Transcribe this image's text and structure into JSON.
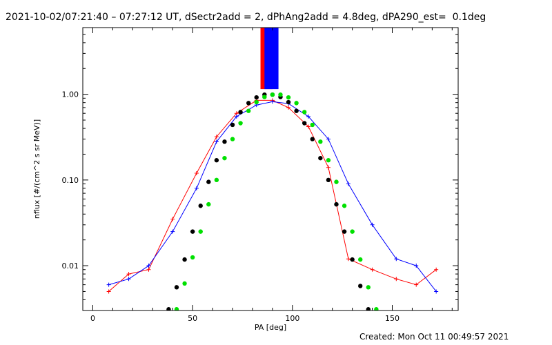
{
  "header": {
    "title": "2021-10-02/07:21:40 – 07:27:12 UT, dSectr2add = 2, dPhAng2add = 4.8deg, dPA290_est=  0.1deg"
  },
  "footer": {
    "created": "Created: Mon Oct 11 00:49:57 2021"
  },
  "chart_data": {
    "type": "line",
    "xlabel": "PA [deg]",
    "ylabel": "nflux [#/(cm^2 s sr MeV)]",
    "xlim": [
      -5,
      183
    ],
    "ylim": [
      0.003,
      6.0
    ],
    "yscale": "log",
    "x_ticks": [
      0,
      50,
      100,
      150
    ],
    "x_tick_labels": [
      "0",
      "50",
      "100",
      "150"
    ],
    "y_ticks": [
      0.01,
      0.1,
      1.0
    ],
    "y_tick_labels": [
      "0.01",
      "0.10",
      "1.00"
    ],
    "colors": {
      "series_a": "#ff0000",
      "series_b": "#0000ff",
      "fit_1": "#000000",
      "fit_2": "#00e000"
    },
    "series": [
      {
        "color": "#ff0000",
        "marker": "plus",
        "x": [
          8,
          18,
          28,
          40,
          52,
          62,
          72,
          82,
          90,
          98,
          108,
          118,
          128,
          140,
          152,
          162,
          172
        ],
        "y": [
          0.005,
          0.008,
          0.009,
          0.035,
          0.12,
          0.32,
          0.6,
          0.85,
          0.85,
          0.7,
          0.42,
          0.14,
          0.012,
          0.009,
          0.007,
          0.006,
          0.009
        ]
      },
      {
        "color": "#0000ff",
        "marker": "plus",
        "x": [
          8,
          18,
          28,
          40,
          52,
          62,
          72,
          82,
          90,
          98,
          108,
          118,
          128,
          140,
          152,
          162,
          172
        ],
        "y": [
          0.006,
          0.007,
          0.01,
          0.025,
          0.08,
          0.28,
          0.55,
          0.75,
          0.82,
          0.78,
          0.55,
          0.3,
          0.09,
          0.03,
          0.012,
          0.01,
          0.005
        ]
      },
      {
        "color": "#000000",
        "marker": "dot",
        "x": [
          38,
          42,
          46,
          50,
          54,
          58,
          62,
          66,
          70,
          74,
          78,
          82,
          86,
          90,
          94,
          98,
          102,
          106,
          110,
          114,
          118,
          122,
          126,
          130,
          134,
          138
        ],
        "y": [
          0.0031,
          0.0056,
          0.0118,
          0.025,
          0.05,
          0.095,
          0.17,
          0.28,
          0.44,
          0.62,
          0.79,
          0.92,
          0.99,
          0.99,
          0.93,
          0.81,
          0.64,
          0.46,
          0.3,
          0.18,
          0.1,
          0.052,
          0.025,
          0.0118,
          0.0058,
          0.0031
        ]
      },
      {
        "color": "#00e000",
        "marker": "dot",
        "x": [
          42,
          46,
          50,
          54,
          58,
          62,
          66,
          70,
          74,
          78,
          82,
          86,
          90,
          94,
          98,
          102,
          106,
          110,
          114,
          118,
          122,
          126,
          130,
          134,
          138,
          142
        ],
        "y": [
          0.0031,
          0.0062,
          0.0125,
          0.025,
          0.052,
          0.1,
          0.18,
          0.3,
          0.46,
          0.64,
          0.81,
          0.93,
          0.99,
          0.99,
          0.92,
          0.79,
          0.62,
          0.44,
          0.28,
          0.17,
          0.095,
          0.05,
          0.025,
          0.0118,
          0.0056,
          0.0031
        ]
      }
    ],
    "bars": [
      {
        "color": "#ff0000",
        "x_range": [
          84,
          90
        ],
        "y_range": [
          1.15,
          6.0
        ]
      },
      {
        "color": "#0000ff",
        "x_range": [
          86,
          93
        ],
        "y_range": [
          1.15,
          6.0
        ]
      }
    ]
  }
}
